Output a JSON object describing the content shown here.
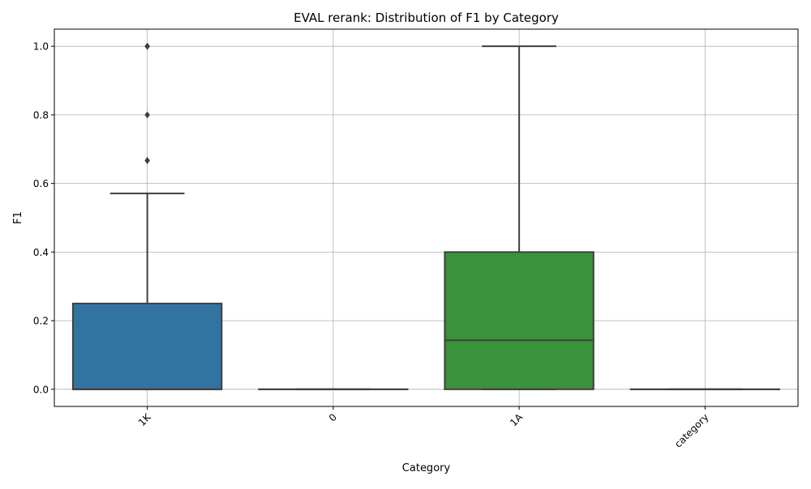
{
  "chart_data": {
    "type": "box",
    "title": "EVAL rerank: Distribution of F1 by Category",
    "xlabel": "Category",
    "ylabel": "F1",
    "ylim": [
      -0.05,
      1.05
    ],
    "yticks": [
      0.0,
      0.2,
      0.4,
      0.6,
      0.8,
      1.0
    ],
    "ytick_labels": [
      "0.0",
      "0.2",
      "0.4",
      "0.6",
      "0.8",
      "1.0"
    ],
    "grid": true,
    "categories": [
      "1K",
      "0",
      "1A",
      "category"
    ],
    "boxes": [
      {
        "category": "1K",
        "color": "#3274a1",
        "q1": 0.0,
        "median": 0.0,
        "q3": 0.25,
        "whisker_low": 0.0,
        "whisker_high": 0.571,
        "outliers": [
          0.667,
          0.667,
          0.8,
          1.0,
          1.0,
          1.0
        ]
      },
      {
        "category": "0",
        "color": "#e1812c",
        "q1": 0.0,
        "median": 0.0,
        "q3": 0.0,
        "whisker_low": 0.0,
        "whisker_high": 0.0,
        "outliers": []
      },
      {
        "category": "1A",
        "color": "#3a923a",
        "q1": 0.0,
        "median": 0.143,
        "q3": 0.4,
        "whisker_low": 0.0,
        "whisker_high": 1.0,
        "outliers": []
      },
      {
        "category": "category",
        "color": "#c03d3e",
        "q1": 0.0,
        "median": 0.0,
        "q3": 0.0,
        "whisker_low": 0.0,
        "whisker_high": 0.0,
        "outliers": []
      }
    ]
  }
}
